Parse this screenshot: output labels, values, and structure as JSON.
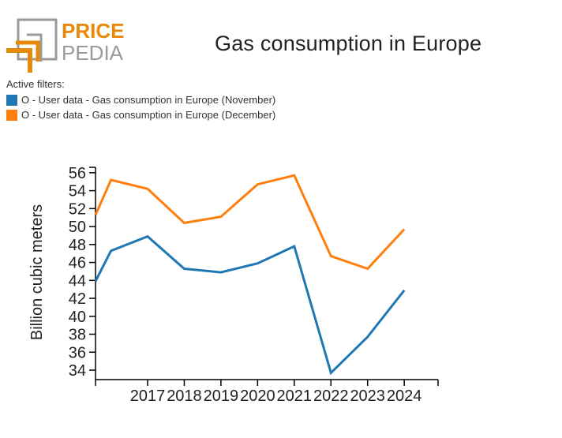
{
  "logo": {
    "line1": "PRICE",
    "line2": "PEDIA",
    "accent": "#e8890c",
    "gray": "#9a9a9a"
  },
  "filters": {
    "label": "Active filters:",
    "items": [
      {
        "label": "O - User data - Gas consumption in Europe (November)",
        "color": "#1f77b4"
      },
      {
        "label": "O - User data - Gas consumption in Europe (December)",
        "color": "#ff7f0e"
      }
    ]
  },
  "chart_data": {
    "type": "line",
    "title": "Gas consumption in Europe",
    "xlabel": "",
    "ylabel": "Billion cubic meters",
    "x": [
      2015.6,
      2016,
      2017,
      2018,
      2019,
      2020,
      2021,
      2022,
      2023,
      2024
    ],
    "xticks": [
      "2017",
      "2018",
      "2019",
      "2020",
      "2021",
      "2022",
      "2023",
      "2024"
    ],
    "xlim": [
      2015.6,
      2024.9
    ],
    "yticks": [
      34,
      36,
      38,
      40,
      42,
      44,
      46,
      48,
      50,
      52,
      54,
      56
    ],
    "ylim": [
      33,
      56
    ],
    "grid": false,
    "series": [
      {
        "name": "November",
        "color": "#1f77b4",
        "values": [
          43.9,
          47.3,
          48.9,
          45.3,
          44.9,
          45.9,
          47.8,
          33.7,
          37.7,
          42.9
        ]
      },
      {
        "name": "December",
        "color": "#ff7f0e",
        "values": [
          51.3,
          55.2,
          54.2,
          50.4,
          51.1,
          54.7,
          55.7,
          46.7,
          45.3,
          49.7
        ]
      }
    ]
  }
}
